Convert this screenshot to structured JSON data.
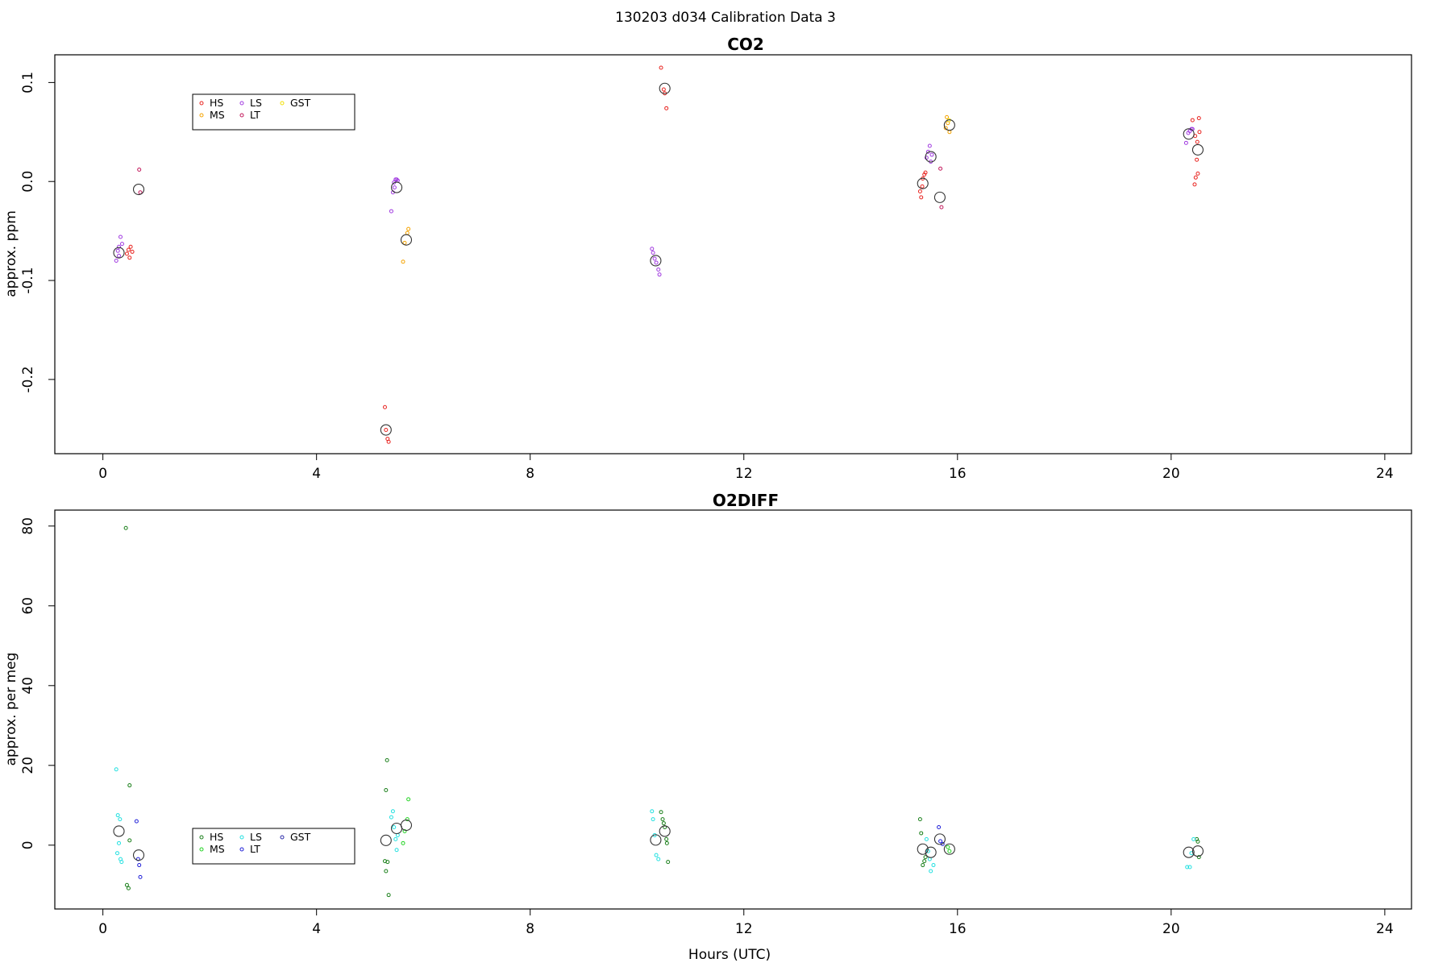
{
  "suptitle": "130203   d034   Calibration Data 3",
  "xlabel": "Hours (UTC)",
  "colors": {
    "HS": "#e8231f",
    "MS": "#f5a300",
    "LS": "#a13be0",
    "LT": "#c2185b",
    "GST": "#f2e000",
    "HS_o2": "#1a7f1a",
    "MS_o2": "#22d322",
    "LS_o2": "#22e0e0",
    "LT_o2": "#2020d8",
    "GST_o2": "#2a2aa8",
    "mean": "#333333"
  },
  "chart_data": [
    {
      "type": "scatter",
      "title": "CO2",
      "xlabel": "",
      "ylabel": "approx. ppm",
      "xlim": [
        -0.9,
        24.5
      ],
      "ylim": [
        -0.275,
        0.128
      ],
      "xticks": [
        0,
        4,
        8,
        12,
        16,
        20,
        24
      ],
      "yticks": [
        -0.2,
        -0.1,
        0.0,
        0.1
      ],
      "ytick_labels": [
        "-0.2",
        "-0.1",
        "0.0",
        "0.1"
      ],
      "grid": false,
      "legend": {
        "position": "top-left",
        "entries": [
          {
            "label": "HS",
            "color_key": "HS"
          },
          {
            "label": "MS",
            "color_key": "MS"
          },
          {
            "label": "LS",
            "color_key": "LS"
          },
          {
            "label": "LT",
            "color_key": "LT"
          },
          {
            "label": "GST",
            "color_key": "GST"
          }
        ]
      },
      "series": [
        {
          "name": "HS",
          "color_key": "HS",
          "points": [
            [
              0.45,
              -0.073
            ],
            [
              0.48,
              -0.069
            ],
            [
              0.5,
              -0.077
            ],
            [
              0.52,
              -0.066
            ],
            [
              0.55,
              -0.071
            ],
            [
              5.28,
              -0.228
            ],
            [
              5.3,
              -0.251
            ],
            [
              5.33,
              -0.26
            ],
            [
              5.35,
              -0.263
            ],
            [
              10.45,
              0.115
            ],
            [
              10.5,
              0.093
            ],
            [
              10.52,
              0.089
            ],
            [
              10.55,
              0.074
            ],
            [
              15.3,
              -0.01
            ],
            [
              15.32,
              -0.016
            ],
            [
              15.35,
              0.003
            ],
            [
              15.38,
              0.007
            ],
            [
              15.4,
              0.009
            ],
            [
              15.34,
              -0.005
            ],
            [
              20.4,
              0.062
            ],
            [
              20.45,
              0.046
            ],
            [
              20.48,
              0.022
            ],
            [
              20.5,
              0.008
            ],
            [
              20.46,
              0.004
            ],
            [
              20.44,
              -0.003
            ],
            [
              20.52,
              0.064
            ],
            [
              20.53,
              0.05
            ],
            [
              20.49,
              0.04
            ]
          ]
        },
        {
          "name": "MS",
          "color_key": "MS",
          "points": [
            [
              5.62,
              -0.081
            ],
            [
              5.65,
              -0.062
            ],
            [
              5.7,
              -0.052
            ],
            [
              5.72,
              -0.048
            ],
            [
              15.8,
              0.065
            ],
            [
              15.82,
              0.059
            ],
            [
              15.85,
              0.05
            ],
            [
              15.78,
              0.054
            ]
          ]
        },
        {
          "name": "LS",
          "color_key": "LS",
          "points": [
            [
              0.25,
              -0.08
            ],
            [
              0.28,
              -0.07
            ],
            [
              0.3,
              -0.066
            ],
            [
              0.33,
              -0.056
            ],
            [
              0.36,
              -0.063
            ],
            [
              0.3,
              -0.075
            ],
            [
              5.4,
              -0.03
            ],
            [
              5.43,
              -0.011
            ],
            [
              5.45,
              -0.001
            ],
            [
              5.48,
              0.002
            ],
            [
              5.5,
              0.002
            ],
            [
              5.52,
              0.001
            ],
            [
              5.46,
              -0.006
            ],
            [
              10.28,
              -0.068
            ],
            [
              10.3,
              -0.072
            ],
            [
              10.33,
              -0.078
            ],
            [
              10.36,
              -0.082
            ],
            [
              10.4,
              -0.089
            ],
            [
              10.42,
              -0.094
            ],
            [
              15.42,
              0.024
            ],
            [
              15.45,
              0.03
            ],
            [
              15.48,
              0.036
            ],
            [
              15.5,
              0.02
            ],
            [
              15.52,
              0.027
            ],
            [
              20.28,
              0.039
            ],
            [
              20.32,
              0.049
            ],
            [
              20.35,
              0.051
            ],
            [
              20.38,
              0.053
            ],
            [
              20.4,
              0.053
            ]
          ]
        },
        {
          "name": "LT",
          "color_key": "LT",
          "points": [
            [
              0.68,
              0.012
            ],
            [
              0.7,
              -0.011
            ],
            [
              15.68,
              0.013
            ],
            [
              15.7,
              -0.026
            ]
          ]
        },
        {
          "name": "GST",
          "color_key": "GST",
          "points": [
            [
              15.84,
              0.062
            ]
          ]
        },
        {
          "name": "mean",
          "color_key": "mean",
          "marker": "large-circle",
          "points": [
            [
              0.3,
              -0.072
            ],
            [
              0.67,
              -0.008
            ],
            [
              5.3,
              -0.251
            ],
            [
              5.5,
              -0.006
            ],
            [
              5.68,
              -0.059
            ],
            [
              10.35,
              -0.08
            ],
            [
              10.52,
              0.094
            ],
            [
              15.35,
              -0.002
            ],
            [
              15.5,
              0.025
            ],
            [
              15.67,
              -0.016
            ],
            [
              15.85,
              0.057
            ],
            [
              20.33,
              0.048
            ],
            [
              20.5,
              0.032
            ]
          ]
        }
      ]
    },
    {
      "type": "scatter",
      "title": "O2DIFF",
      "xlabel": "Hours (UTC)",
      "ylabel": "approx. per meg",
      "xlim": [
        -0.9,
        24.5
      ],
      "ylim": [
        -16,
        84
      ],
      "xticks": [
        0,
        4,
        8,
        12,
        16,
        20,
        24
      ],
      "yticks": [
        0,
        20,
        40,
        60,
        80
      ],
      "ytick_labels": [
        "0",
        "20",
        "40",
        "60",
        "80"
      ],
      "grid": false,
      "legend": {
        "position": "bottom-left",
        "entries": [
          {
            "label": "HS",
            "color_key": "HS_o2"
          },
          {
            "label": "MS",
            "color_key": "MS_o2"
          },
          {
            "label": "LS",
            "color_key": "LS_o2"
          },
          {
            "label": "LT",
            "color_key": "LT_o2"
          },
          {
            "label": "GST",
            "color_key": "GST_o2"
          }
        ]
      },
      "series": [
        {
          "name": "HS",
          "color_key": "HS_o2",
          "points": [
            [
              0.43,
              79.5
            ],
            [
              0.5,
              15
            ],
            [
              0.5,
              1.2
            ],
            [
              0.45,
              -10
            ],
            [
              0.48,
              -10.8
            ],
            [
              5.3,
              13.8
            ],
            [
              5.32,
              21.3
            ],
            [
              5.28,
              -4
            ],
            [
              5.3,
              -6.5
            ],
            [
              5.35,
              -12.5
            ],
            [
              5.33,
              -4.2
            ],
            [
              10.45,
              8.3
            ],
            [
              10.48,
              6.5
            ],
            [
              10.5,
              5.5
            ],
            [
              10.52,
              4.5
            ],
            [
              10.55,
              1.5
            ],
            [
              10.56,
              0.5
            ],
            [
              10.58,
              -4.2
            ],
            [
              15.3,
              6.5
            ],
            [
              15.32,
              3
            ],
            [
              15.35,
              -5
            ],
            [
              15.38,
              -4
            ],
            [
              15.4,
              -3
            ],
            [
              20.48,
              1.5
            ],
            [
              20.5,
              0.9
            ],
            [
              20.52,
              -3
            ]
          ]
        },
        {
          "name": "MS",
          "color_key": "MS_o2",
          "points": [
            [
              5.62,
              0.5
            ],
            [
              5.65,
              3.5
            ],
            [
              5.7,
              6.5
            ],
            [
              5.72,
              11.5
            ],
            [
              15.82,
              -0.5
            ],
            [
              15.85,
              -1.5
            ]
          ]
        },
        {
          "name": "LS",
          "color_key": "LS_o2",
          "points": [
            [
              0.25,
              19
            ],
            [
              0.28,
              7.5
            ],
            [
              0.32,
              6.5
            ],
            [
              0.3,
              0.5
            ],
            [
              0.33,
              -3.5
            ],
            [
              0.35,
              -4.2
            ],
            [
              0.27,
              -2
            ],
            [
              5.4,
              7
            ],
            [
              5.43,
              8.5
            ],
            [
              5.45,
              4.5
            ],
            [
              5.48,
              1.5
            ],
            [
              5.5,
              -1.2
            ],
            [
              5.52,
              2.5
            ],
            [
              10.28,
              8.5
            ],
            [
              10.3,
              6.5
            ],
            [
              10.33,
              2.5
            ],
            [
              10.36,
              -2.5
            ],
            [
              10.4,
              -3.5
            ],
            [
              15.42,
              1.5
            ],
            [
              15.45,
              -1.5
            ],
            [
              15.48,
              -3.5
            ],
            [
              15.5,
              -6.5
            ],
            [
              15.55,
              -5
            ],
            [
              20.3,
              -5.5
            ],
            [
              20.35,
              -5.5
            ],
            [
              20.38,
              -2
            ],
            [
              20.42,
              1.5
            ]
          ]
        },
        {
          "name": "LT",
          "color_key": "LT_o2",
          "points": [
            [
              0.63,
              6
            ],
            [
              0.66,
              -3.5
            ],
            [
              0.68,
              -5
            ],
            [
              0.7,
              -8
            ],
            [
              15.65,
              4.5
            ],
            [
              15.68,
              1
            ],
            [
              15.72,
              0.3
            ]
          ]
        },
        {
          "name": "mean",
          "color_key": "mean",
          "marker": "large-circle",
          "points": [
            [
              0.3,
              3.5
            ],
            [
              0.67,
              -2.5
            ],
            [
              5.3,
              1.2
            ],
            [
              5.5,
              4.2
            ],
            [
              5.68,
              5
            ],
            [
              10.35,
              1.3
            ],
            [
              10.52,
              3.5
            ],
            [
              15.35,
              -1
            ],
            [
              15.5,
              -1.8
            ],
            [
              15.67,
              1.5
            ],
            [
              15.85,
              -1
            ],
            [
              20.33,
              -1.8
            ],
            [
              20.5,
              -1.5
            ]
          ]
        }
      ]
    }
  ]
}
